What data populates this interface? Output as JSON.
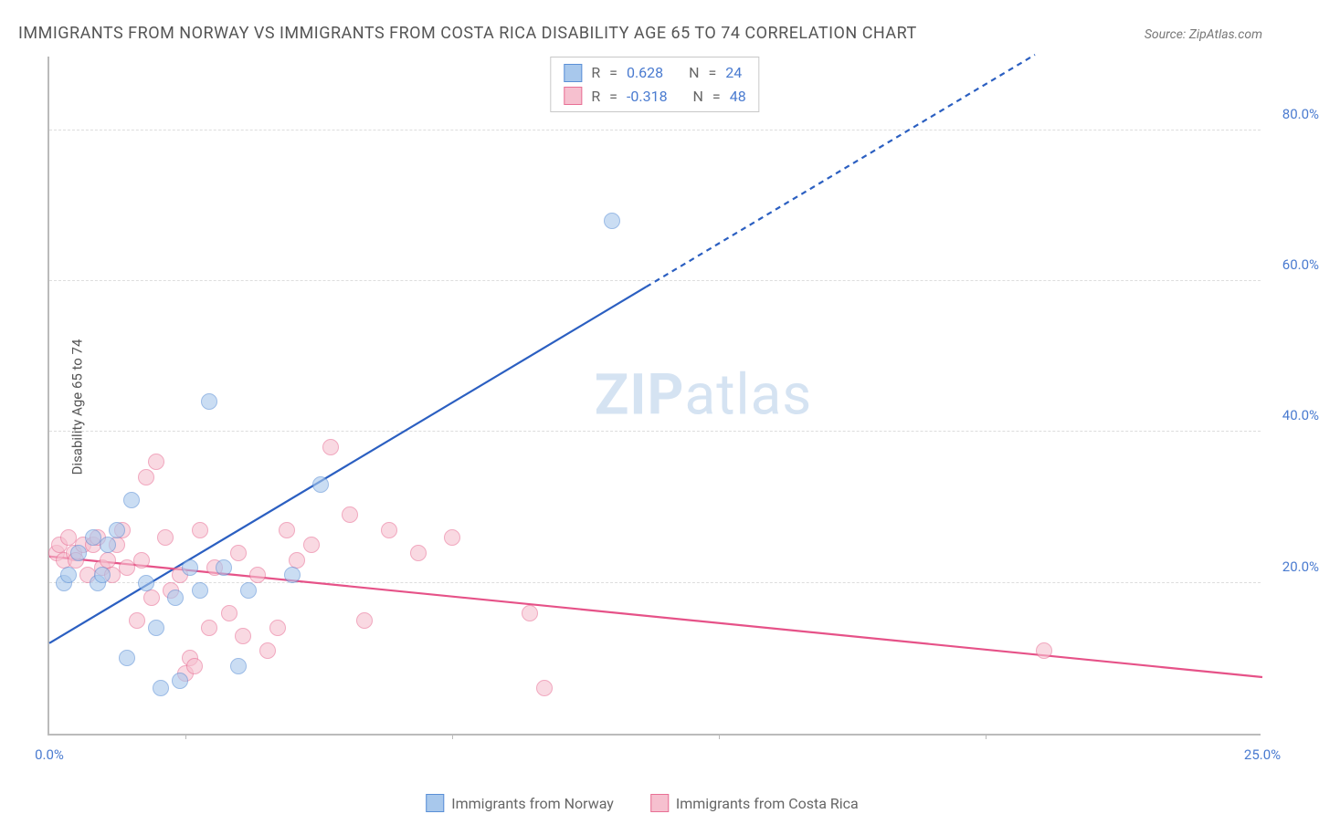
{
  "title": "IMMIGRANTS FROM NORWAY VS IMMIGRANTS FROM COSTA RICA DISABILITY AGE 65 TO 74 CORRELATION CHART",
  "source": "Source: ZipAtlas.com",
  "ylabel": "Disability Age 65 to 74",
  "watermark": {
    "bold": "ZIP",
    "rest": "atlas"
  },
  "chart": {
    "type": "scatter",
    "xlim": [
      0,
      25
    ],
    "ylim": [
      0,
      90
    ],
    "yticks": [
      20,
      40,
      60,
      80
    ],
    "ytick_labels": [
      "20.0%",
      "40.0%",
      "60.0%",
      "80.0%"
    ],
    "xticks": [
      0,
      25
    ],
    "xtick_labels": [
      "0.0%",
      "25.0%"
    ],
    "xtick_marks": [
      2.8,
      8.3,
      13.8,
      19.3
    ],
    "grid_color": "#dddddd",
    "axis_color": "#bbbbbb",
    "background_color": "#ffffff",
    "tick_label_color": "#4a7bd0",
    "marker_radius": 9,
    "marker_opacity": 0.6,
    "marker_border_width": 1.5
  },
  "series": [
    {
      "name": "Immigrants from Norway",
      "color_fill": "#a8c8ec",
      "color_stroke": "#5a8fd6",
      "R": "0.628",
      "N": "24",
      "trend": {
        "x1": 0,
        "y1": 12,
        "x2": 25,
        "y2": 108,
        "solid_until_x": 12.3,
        "color": "#2b5fc1",
        "width": 2.2
      },
      "points": [
        [
          0.3,
          20
        ],
        [
          0.4,
          21
        ],
        [
          0.6,
          24
        ],
        [
          0.9,
          26
        ],
        [
          1.0,
          20
        ],
        [
          1.1,
          21
        ],
        [
          1.2,
          25
        ],
        [
          1.4,
          27
        ],
        [
          1.6,
          10
        ],
        [
          1.7,
          31
        ],
        [
          2.0,
          20
        ],
        [
          2.2,
          14
        ],
        [
          2.3,
          6
        ],
        [
          2.6,
          18
        ],
        [
          2.7,
          7
        ],
        [
          2.9,
          22
        ],
        [
          3.1,
          19
        ],
        [
          3.3,
          44
        ],
        [
          3.6,
          22
        ],
        [
          3.9,
          9
        ],
        [
          4.1,
          19
        ],
        [
          5.0,
          21
        ],
        [
          5.6,
          33
        ],
        [
          11.6,
          68
        ]
      ]
    },
    {
      "name": "Immigrants from Costa Rica",
      "color_fill": "#f6c0cf",
      "color_stroke": "#e86f95",
      "R": "-0.318",
      "N": "48",
      "trend": {
        "x1": 0,
        "y1": 23.5,
        "x2": 25,
        "y2": 7.5,
        "solid_until_x": 25,
        "color": "#e65288",
        "width": 2.2
      },
      "points": [
        [
          0.15,
          24
        ],
        [
          0.2,
          25
        ],
        [
          0.3,
          23
        ],
        [
          0.4,
          26
        ],
        [
          0.5,
          24
        ],
        [
          0.55,
          23
        ],
        [
          0.7,
          25
        ],
        [
          0.8,
          21
        ],
        [
          0.9,
          25
        ],
        [
          1.0,
          26
        ],
        [
          1.1,
          22
        ],
        [
          1.2,
          23
        ],
        [
          1.3,
          21
        ],
        [
          1.4,
          25
        ],
        [
          1.5,
          27
        ],
        [
          1.6,
          22
        ],
        [
          1.8,
          15
        ],
        [
          1.9,
          23
        ],
        [
          2.0,
          34
        ],
        [
          2.1,
          18
        ],
        [
          2.2,
          36
        ],
        [
          2.4,
          26
        ],
        [
          2.5,
          19
        ],
        [
          2.7,
          21
        ],
        [
          2.8,
          8
        ],
        [
          2.9,
          10
        ],
        [
          3.0,
          9
        ],
        [
          3.1,
          27
        ],
        [
          3.3,
          14
        ],
        [
          3.4,
          22
        ],
        [
          3.7,
          16
        ],
        [
          3.9,
          24
        ],
        [
          4.0,
          13
        ],
        [
          4.3,
          21
        ],
        [
          4.5,
          11
        ],
        [
          4.7,
          14
        ],
        [
          4.9,
          27
        ],
        [
          5.1,
          23
        ],
        [
          5.4,
          25
        ],
        [
          5.8,
          38
        ],
        [
          6.2,
          29
        ],
        [
          6.5,
          15
        ],
        [
          7.0,
          27
        ],
        [
          7.6,
          24
        ],
        [
          8.3,
          26
        ],
        [
          9.9,
          16
        ],
        [
          10.2,
          6
        ],
        [
          20.5,
          11
        ]
      ]
    }
  ],
  "legend": {
    "series1_label": "Immigrants from Norway",
    "series2_label": "Immigrants from Costa Rica"
  },
  "stats_labels": {
    "R": "R",
    "eq": "=",
    "N": "N"
  }
}
